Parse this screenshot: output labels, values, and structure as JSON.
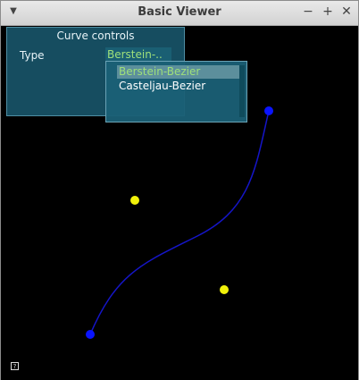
{
  "window": {
    "title": "Basic Viewer"
  },
  "titlebar_icons": {
    "menu": "chevron-down-icon",
    "minimize": "minimize-icon",
    "maximize": "maximize-icon",
    "close": "close-icon"
  },
  "panel": {
    "title": "Curve controls",
    "type_label": "Type",
    "type_value": "Berstein-.."
  },
  "dropdown": {
    "options": [
      {
        "label": "Berstein-Bezier",
        "selected": true
      },
      {
        "label": "Casteljau-Bezier",
        "selected": false
      }
    ]
  },
  "colors": {
    "curve": "#1515c8",
    "endpoint": "#0a14ff",
    "control_point": "#f2f20a",
    "panel_bg": "#185468",
    "selected_text": "#9fe07a"
  },
  "help": {
    "glyph": "?"
  }
}
